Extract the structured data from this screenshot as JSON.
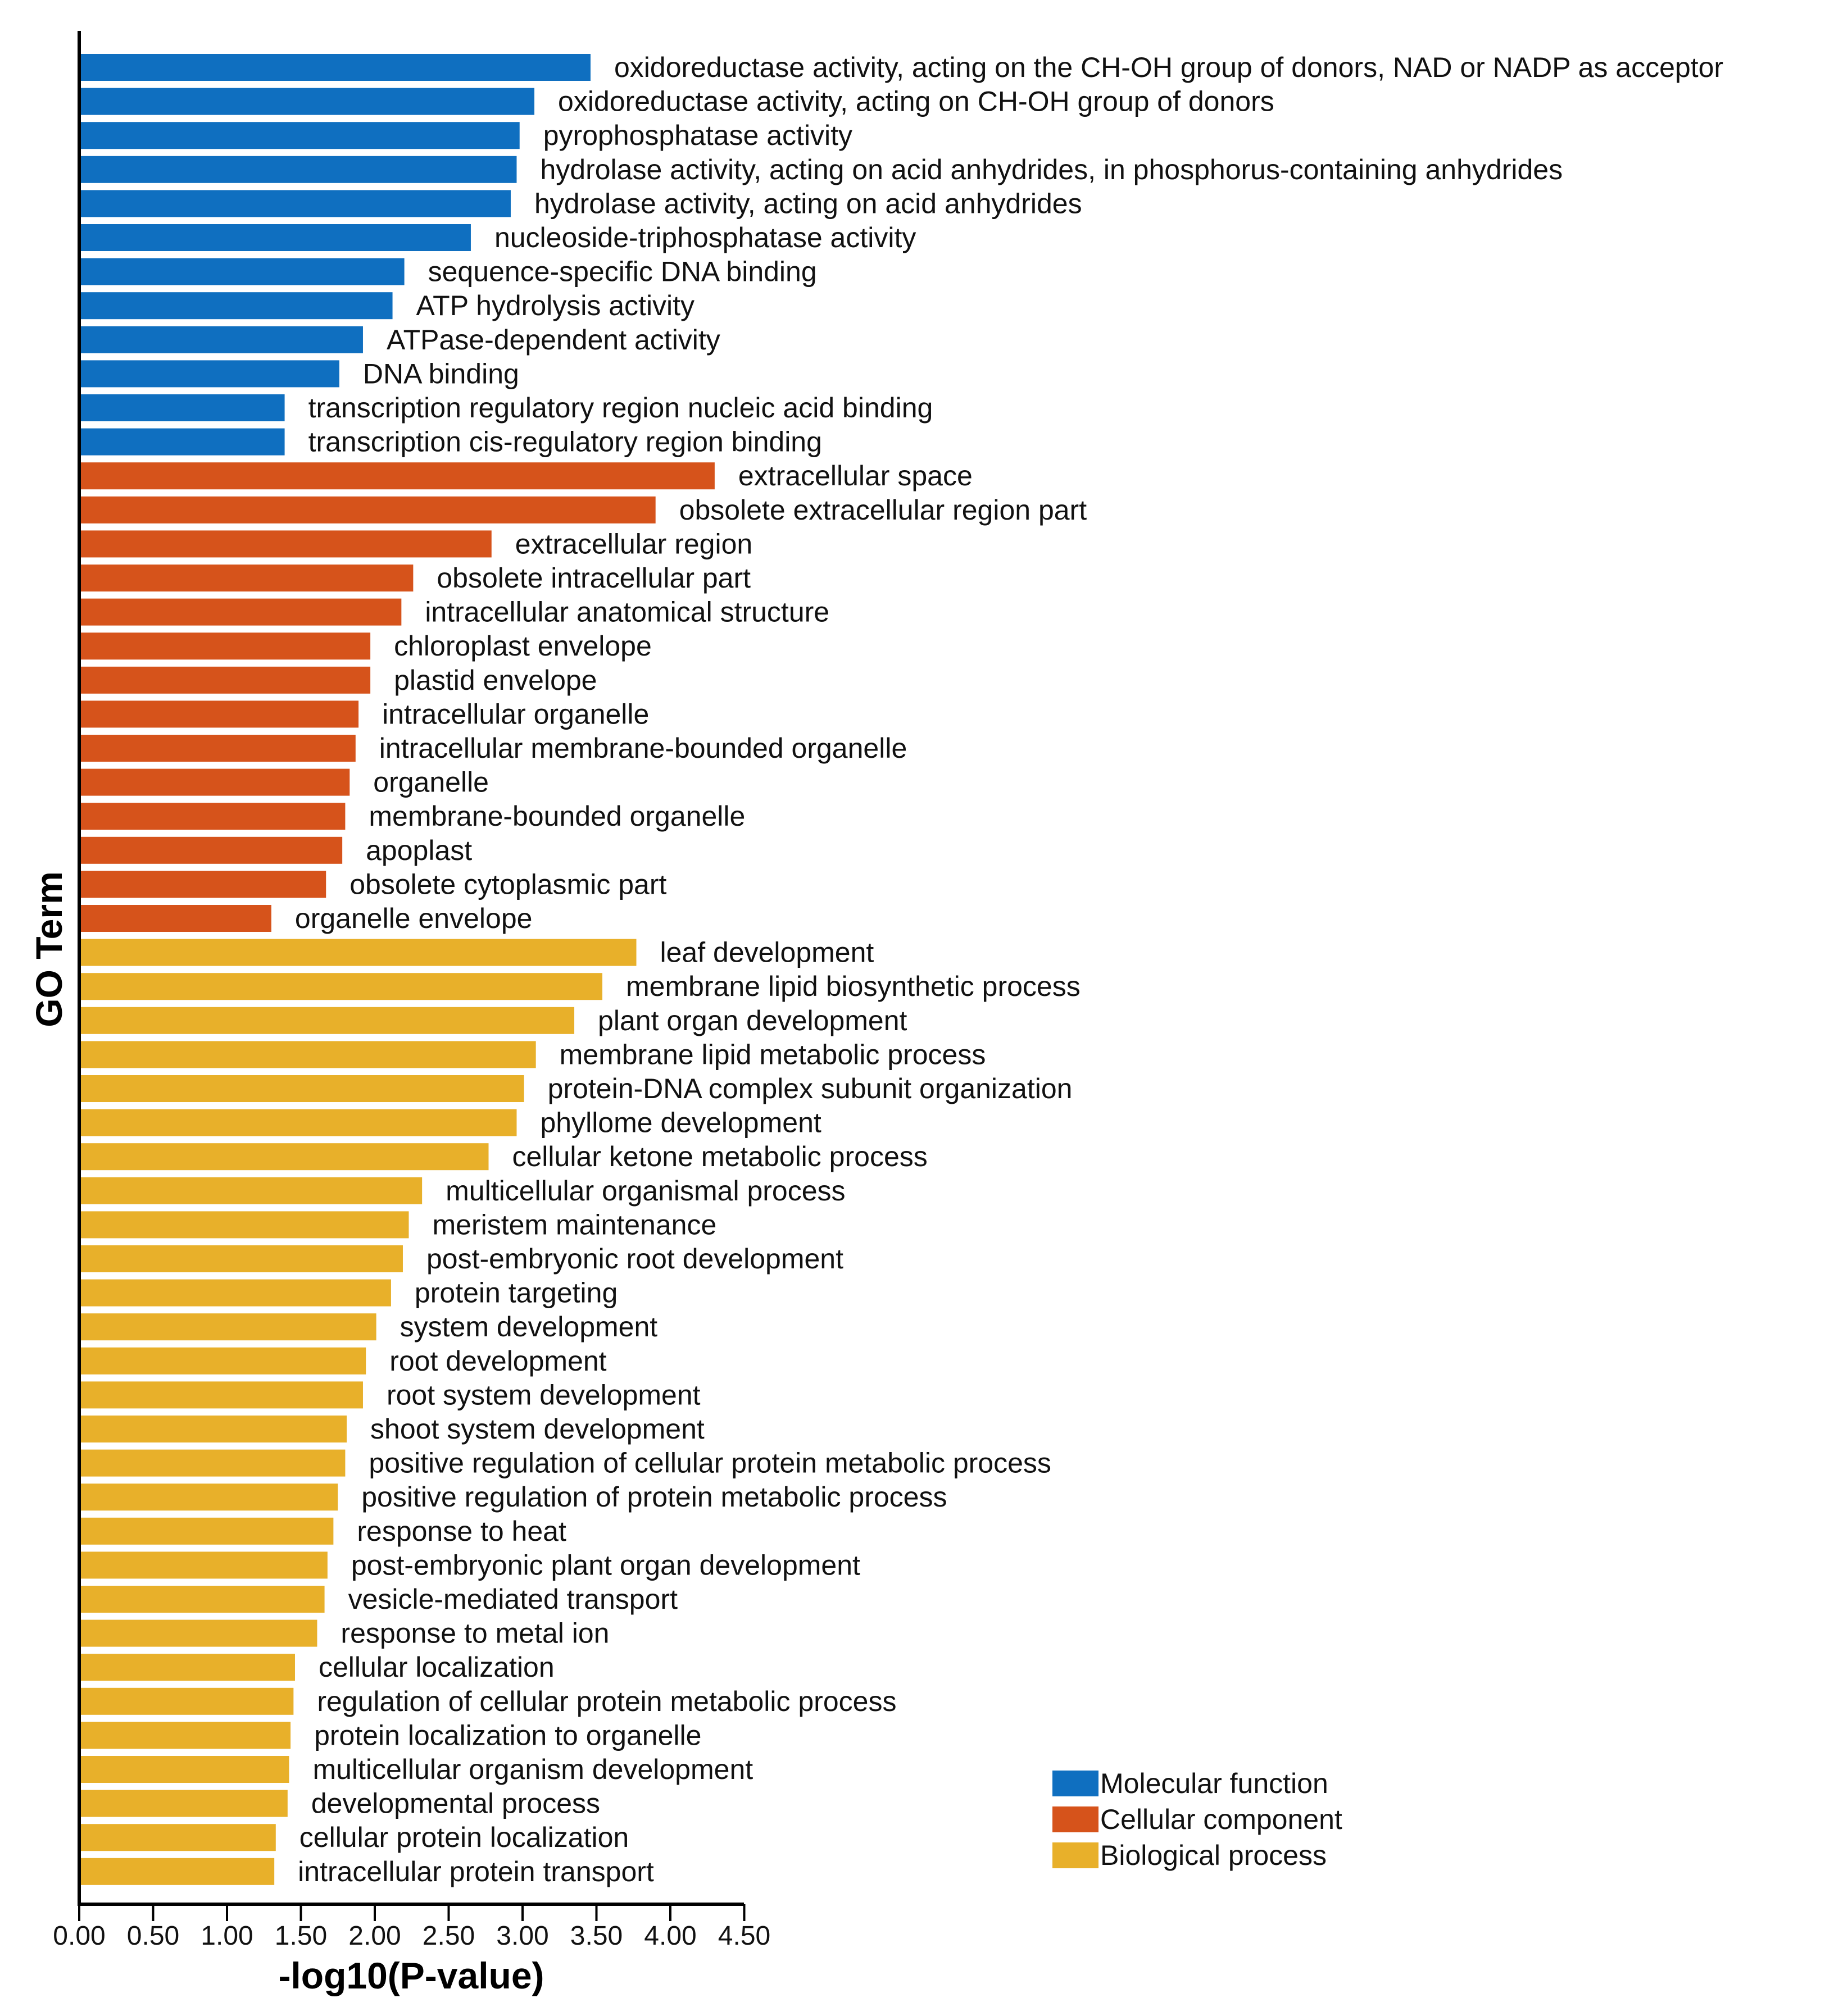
{
  "chart_data": {
    "type": "bar",
    "orientation": "horizontal",
    "xlabel": "-log10(P-value)",
    "ylabel": "GO Term",
    "xlim": [
      0,
      4.5
    ],
    "xticks": [
      "0.00",
      "0.50",
      "1.00",
      "1.50",
      "2.00",
      "2.50",
      "3.00",
      "3.50",
      "4.00",
      "4.50"
    ],
    "grid": false,
    "legend_position": "bottom-right",
    "legend": [
      {
        "name": "Molecular function",
        "color": "#0f6fc0"
      },
      {
        "name": "Cellular component",
        "color": "#d6531b"
      },
      {
        "name": "Biological process",
        "color": "#e8b02a"
      }
    ],
    "bars": [
      {
        "term": "oxidoreductase activity, acting on the CH-OH group of donors, NAD or NADP as acceptor",
        "value": 3.46,
        "category": 0
      },
      {
        "term": "oxidoreductase activity, acting on CH-OH group of donors",
        "value": 3.08,
        "category": 0
      },
      {
        "term": "pyrophosphatase activity",
        "value": 2.98,
        "category": 0
      },
      {
        "term": "hydrolase activity, acting on acid anhydrides, in phosphorus-containing anhydrides",
        "value": 2.96,
        "category": 0
      },
      {
        "term": "hydrolase activity, acting on acid anhydrides",
        "value": 2.92,
        "category": 0
      },
      {
        "term": "nucleoside-triphosphatase activity",
        "value": 2.65,
        "category": 0
      },
      {
        "term": "sequence-specific DNA binding",
        "value": 2.2,
        "category": 0
      },
      {
        "term": "ATP hydrolysis activity",
        "value": 2.12,
        "category": 0
      },
      {
        "term": "ATPase-dependent activity",
        "value": 1.92,
        "category": 0
      },
      {
        "term": "DNA binding",
        "value": 1.76,
        "category": 0
      },
      {
        "term": "transcription regulatory region nucleic acid binding",
        "value": 1.39,
        "category": 0
      },
      {
        "term": "transcription cis-regulatory region binding",
        "value": 1.39,
        "category": 0
      },
      {
        "term": "extracellular space",
        "value": 4.3,
        "category": 1
      },
      {
        "term": "obsolete extracellular region part",
        "value": 3.9,
        "category": 1
      },
      {
        "term": "extracellular region",
        "value": 2.79,
        "category": 1
      },
      {
        "term": "obsolete intracellular part",
        "value": 2.26,
        "category": 1
      },
      {
        "term": "intracellular anatomical structure",
        "value": 2.18,
        "category": 1
      },
      {
        "term": "chloroplast envelope",
        "value": 1.97,
        "category": 1
      },
      {
        "term": "plastid envelope",
        "value": 1.97,
        "category": 1
      },
      {
        "term": "intracellular organelle",
        "value": 1.89,
        "category": 1
      },
      {
        "term": "intracellular membrane-bounded organelle",
        "value": 1.87,
        "category": 1
      },
      {
        "term": "organelle",
        "value": 1.83,
        "category": 1
      },
      {
        "term": "membrane-bounded organelle",
        "value": 1.8,
        "category": 1
      },
      {
        "term": "apoplast",
        "value": 1.78,
        "category": 1
      },
      {
        "term": "obsolete cytoplasmic part",
        "value": 1.67,
        "category": 1
      },
      {
        "term": "organelle envelope",
        "value": 1.3,
        "category": 1
      },
      {
        "term": "leaf development",
        "value": 3.77,
        "category": 2
      },
      {
        "term": "membrane lipid biosynthetic process",
        "value": 3.54,
        "category": 2
      },
      {
        "term": "plant organ development",
        "value": 3.35,
        "category": 2
      },
      {
        "term": "membrane lipid metabolic process",
        "value": 3.09,
        "category": 2
      },
      {
        "term": "protein-DNA complex subunit organization",
        "value": 3.01,
        "category": 2
      },
      {
        "term": "phyllome development",
        "value": 2.96,
        "category": 2
      },
      {
        "term": "cellular ketone metabolic process",
        "value": 2.77,
        "category": 2
      },
      {
        "term": "multicellular organismal process",
        "value": 2.32,
        "category": 2
      },
      {
        "term": "meristem maintenance",
        "value": 2.23,
        "category": 2
      },
      {
        "term": "post-embryonic root development",
        "value": 2.19,
        "category": 2
      },
      {
        "term": "protein targeting",
        "value": 2.11,
        "category": 2
      },
      {
        "term": "system development",
        "value": 2.01,
        "category": 2
      },
      {
        "term": "root development",
        "value": 1.94,
        "category": 2
      },
      {
        "term": "root system development",
        "value": 1.92,
        "category": 2
      },
      {
        "term": "shoot system development",
        "value": 1.81,
        "category": 2
      },
      {
        "term": "positive regulation of cellular protein metabolic process",
        "value": 1.8,
        "category": 2
      },
      {
        "term": "positive regulation of protein metabolic process",
        "value": 1.75,
        "category": 2
      },
      {
        "term": "response to heat",
        "value": 1.72,
        "category": 2
      },
      {
        "term": "post-embryonic plant organ development",
        "value": 1.68,
        "category": 2
      },
      {
        "term": "vesicle-mediated transport",
        "value": 1.66,
        "category": 2
      },
      {
        "term": "response to metal ion",
        "value": 1.61,
        "category": 2
      },
      {
        "term": "cellular localization",
        "value": 1.46,
        "category": 2
      },
      {
        "term": "regulation of cellular protein metabolic process",
        "value": 1.45,
        "category": 2
      },
      {
        "term": "protein localization to organelle",
        "value": 1.43,
        "category": 2
      },
      {
        "term": "multicellular organism development",
        "value": 1.42,
        "category": 2
      },
      {
        "term": "developmental process",
        "value": 1.41,
        "category": 2
      },
      {
        "term": "cellular protein localization",
        "value": 1.33,
        "category": 2
      },
      {
        "term": "intracellular protein transport",
        "value": 1.32,
        "category": 2
      }
    ]
  }
}
